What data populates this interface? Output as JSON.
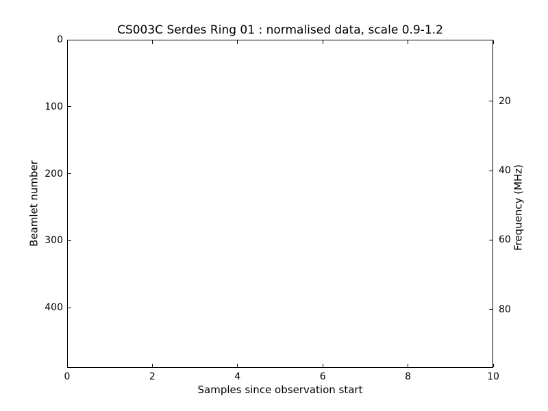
{
  "chart_data": {
    "type": "heatmap",
    "title": "CS003C Serdes Ring 01 : normalised data, scale 0.9-1.2",
    "xlabel": "Samples since observation start",
    "ylabel_left": "Beamlet number",
    "ylabel_right": "Frequency (MHz)",
    "x_axis": {
      "min": 0,
      "max": 10,
      "ticks": [
        0,
        2,
        4,
        6,
        8,
        10
      ]
    },
    "y_left_axis": {
      "min": 0,
      "max": 490,
      "ticks": [
        0,
        100,
        200,
        300,
        400
      ],
      "inverted_top_is_min": true
    },
    "y_right_axis": {
      "min": 2.3,
      "max": 96.8,
      "ticks": [
        20,
        40,
        60,
        80
      ],
      "inverted_top_is_min": true
    },
    "series": [],
    "plot_area_content": "blank",
    "normalisation_scale": [
      0.9,
      1.2
    ],
    "colors": {
      "foreground": "#000000",
      "background": "#ffffff"
    },
    "grid": false,
    "legend": false
  }
}
